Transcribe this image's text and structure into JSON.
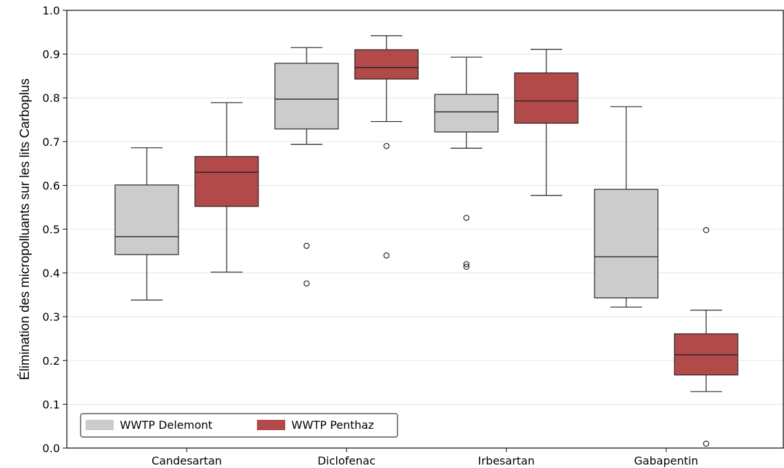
{
  "chart_data": {
    "type": "boxplot",
    "ylabel": "Élimination des micropolluants sur les lits Carboplus",
    "ylim": [
      0,
      1.0
    ],
    "yticks": [
      "0.0",
      "0.1",
      "0.2",
      "0.3",
      "0.4",
      "0.5",
      "0.6",
      "0.7",
      "0.8",
      "0.9",
      "1.0"
    ],
    "grid": "horizontal",
    "legend_position": "bottom-left",
    "categories": [
      "Candesartan",
      "Diclofenac",
      "Irbesartan",
      "Gabapentin"
    ],
    "series": [
      {
        "name": "WWTP Delemont",
        "color": "#cccccc",
        "boxes": [
          {
            "whislo": 0.338,
            "q1": 0.442,
            "med": 0.483,
            "q3": 0.601,
            "whishi": 0.686,
            "fliers": []
          },
          {
            "whislo": 0.694,
            "q1": 0.729,
            "med": 0.797,
            "q3": 0.879,
            "whishi": 0.915,
            "fliers": [
              0.462,
              0.376
            ]
          },
          {
            "whislo": 0.685,
            "q1": 0.722,
            "med": 0.768,
            "q3": 0.808,
            "whishi": 0.893,
            "fliers": [
              0.526,
              0.42,
              0.414
            ]
          },
          {
            "whislo": 0.322,
            "q1": 0.343,
            "med": 0.437,
            "q3": 0.591,
            "whishi": 0.78,
            "fliers": []
          }
        ]
      },
      {
        "name": "WWTP Penthaz",
        "color": "#b34a4a",
        "boxes": [
          {
            "whislo": 0.402,
            "q1": 0.552,
            "med": 0.63,
            "q3": 0.666,
            "whishi": 0.789,
            "fliers": []
          },
          {
            "whislo": 0.746,
            "q1": 0.843,
            "med": 0.869,
            "q3": 0.91,
            "whishi": 0.942,
            "fliers": [
              0.69,
              0.44
            ]
          },
          {
            "whislo": 0.577,
            "q1": 0.742,
            "med": 0.793,
            "q3": 0.857,
            "whishi": 0.911,
            "fliers": []
          },
          {
            "whislo": 0.129,
            "q1": 0.167,
            "med": 0.213,
            "q3": 0.261,
            "whishi": 0.315,
            "fliers": [
              0.498,
              0.01
            ]
          }
        ]
      }
    ]
  }
}
